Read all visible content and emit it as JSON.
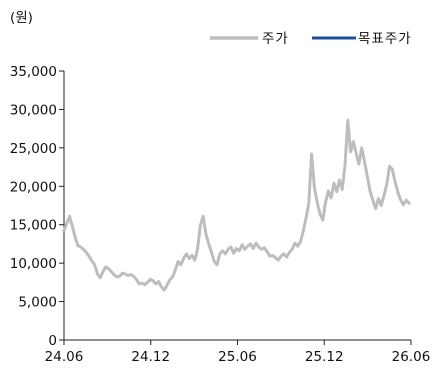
{
  "chart_data": {
    "type": "line",
    "unit_label": "(원)",
    "legend": [
      {
        "name": "주가",
        "color": "#bdbdbd"
      },
      {
        "name": "목표주가",
        "color": "#1f4e9c"
      }
    ],
    "ylim": [
      0,
      35000
    ],
    "yticks": [
      0,
      5000,
      10000,
      15000,
      20000,
      25000,
      30000,
      35000
    ],
    "ytick_labels": [
      "0",
      "5,000",
      "10,000",
      "15,000",
      "20,000",
      "25,000",
      "30,000",
      "35,000"
    ],
    "xticks": [
      "24.06",
      "24.12",
      "25.06",
      "25.12",
      "26.06"
    ],
    "grid": false,
    "series": [
      {
        "name": "주가",
        "color": "#bdbdbd",
        "values": [
          14200,
          15200,
          16100,
          14800,
          13400,
          12300,
          12100,
          11800,
          11400,
          10900,
          10300,
          9800,
          8600,
          8100,
          8900,
          9500,
          9300,
          8900,
          8500,
          8200,
          8300,
          8700,
          8600,
          8400,
          8500,
          8300,
          7900,
          7300,
          7400,
          7200,
          7500,
          7900,
          7700,
          7300,
          7600,
          6900,
          6500,
          7100,
          7800,
          8200,
          9100,
          10200,
          9800,
          10600,
          11200,
          10600,
          11000,
          10400,
          11800,
          14900,
          16100,
          13800,
          12500,
          11400,
          10200,
          9800,
          11200,
          11600,
          11200,
          11800,
          12100,
          11300,
          11900,
          11600,
          12400,
          11800,
          12200,
          12500,
          11900,
          12600,
          12100,
          11800,
          12000,
          11500,
          10900,
          11000,
          10700,
          10400,
          10900,
          11200,
          10800,
          11400,
          11800,
          12600,
          12200,
          12800,
          14200,
          15900,
          17800,
          24200,
          19800,
          17900,
          16400,
          15600,
          17900,
          19400,
          18500,
          20400,
          19300,
          20800,
          19600,
          22700,
          28600,
          24500,
          25800,
          24300,
          22900,
          25000,
          23200,
          21300,
          19400,
          18200,
          17100,
          18400,
          17500,
          18800,
          20200,
          22600,
          22200,
          20600,
          19200,
          18200,
          17600,
          18200,
          17800
        ]
      },
      {
        "name": "목표주가",
        "color": "#1f4e9c",
        "values": []
      }
    ]
  }
}
